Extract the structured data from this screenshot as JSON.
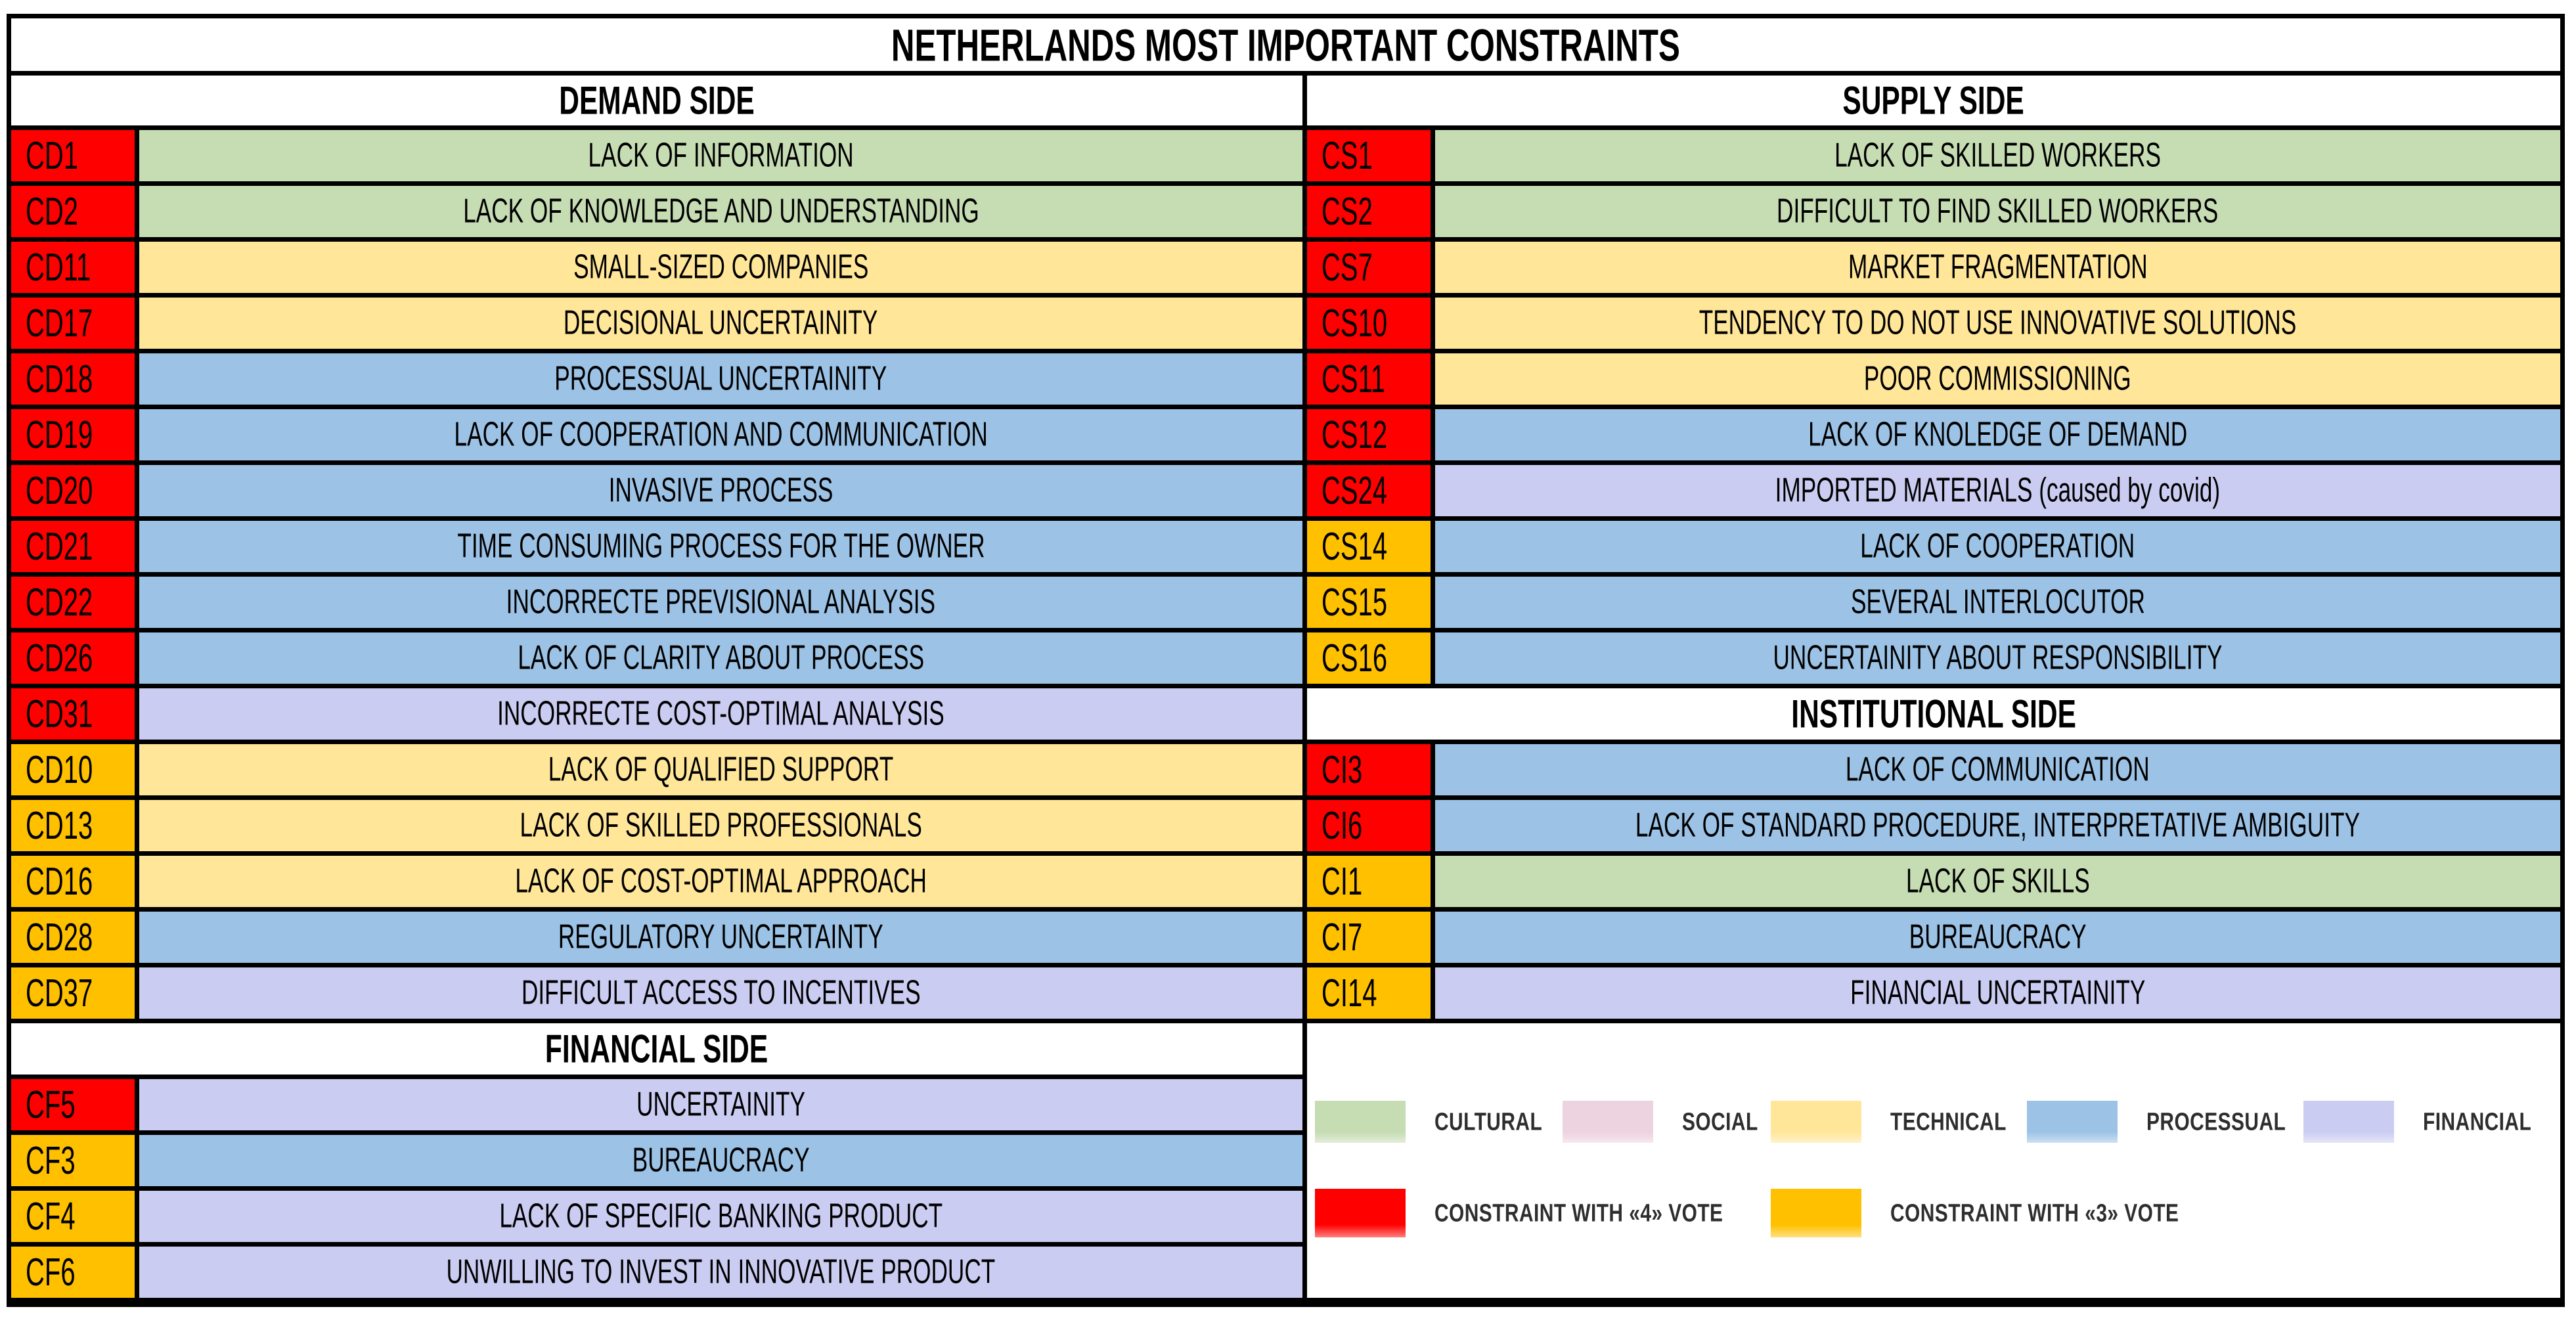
{
  "chart_data": {
    "type": "table",
    "title": "NETHERLANDS MOST IMPORTANT CONSTRAINTS",
    "category_colors": {
      "CULTURAL": "#C6DCB3",
      "SOCIAL": "#EDD2DF",
      "TECHNICAL": "#FFE699",
      "PROCESSUAL": "#9CC2E5",
      "FINANCIAL": "#CBCCF2"
    },
    "vote_colors": {
      "4": "#FF0000",
      "3": "#FFC000"
    },
    "columns": [
      {
        "header": "DEMAND SIDE",
        "sections": [
          {
            "header": null,
            "rows": [
              {
                "id": "CD1",
                "label": "LACK OF INFORMATION",
                "category": "CULTURAL",
                "vote": "4"
              },
              {
                "id": "CD2",
                "label": "LACK OF KNOWLEDGE AND UNDERSTANDING",
                "category": "CULTURAL",
                "vote": "4"
              },
              {
                "id": "CD11",
                "label": "SMALL-SIZED COMPANIES",
                "category": "TECHNICAL",
                "vote": "4"
              },
              {
                "id": "CD17",
                "label": "DECISIONAL UNCERTAINITY",
                "category": "TECHNICAL",
                "vote": "4"
              },
              {
                "id": "CD18",
                "label": "PROCESSUAL UNCERTAINITY",
                "category": "PROCESSUAL",
                "vote": "4"
              },
              {
                "id": "CD19",
                "label": "LACK OF COOPERATION AND COMMUNICATION",
                "category": "PROCESSUAL",
                "vote": "4"
              },
              {
                "id": "CD20",
                "label": "INVASIVE PROCESS",
                "category": "PROCESSUAL",
                "vote": "4"
              },
              {
                "id": "CD21",
                "label": "TIME CONSUMING PROCESS FOR THE OWNER",
                "category": "PROCESSUAL",
                "vote": "4"
              },
              {
                "id": "CD22",
                "label": "INCORRECTE PREVISIONAL ANALYSIS",
                "category": "PROCESSUAL",
                "vote": "4"
              },
              {
                "id": "CD26",
                "label": "LACK OF CLARITY ABOUT PROCESS",
                "category": "PROCESSUAL",
                "vote": "4"
              },
              {
                "id": "CD31",
                "label": "INCORRECTE COST-OPTIMAL ANALYSIS",
                "category": "FINANCIAL",
                "vote": "4"
              },
              {
                "id": "CD10",
                "label": "LACK OF QUALIFIED SUPPORT",
                "category": "TECHNICAL",
                "vote": "3"
              },
              {
                "id": "CD13",
                "label": "LACK OF SKILLED PROFESSIONALS",
                "category": "TECHNICAL",
                "vote": "3"
              },
              {
                "id": "CD16",
                "label": "LACK OF COST-OPTIMAL APPROACH",
                "category": "TECHNICAL",
                "vote": "3"
              },
              {
                "id": "CD28",
                "label": "REGULATORY UNCERTAINTY",
                "category": "PROCESSUAL",
                "vote": "3"
              },
              {
                "id": "CD37",
                "label": "DIFFICULT ACCESS TO INCENTIVES",
                "category": "FINANCIAL",
                "vote": "3"
              }
            ]
          },
          {
            "header": "FINANCIAL SIDE",
            "rows": [
              {
                "id": "CF5",
                "label": "UNCERTAINITY",
                "category": "FINANCIAL",
                "vote": "4"
              },
              {
                "id": "CF3",
                "label": "BUREAUCRACY",
                "category": "PROCESSUAL",
                "vote": "3"
              },
              {
                "id": "CF4",
                "label": "LACK OF SPECIFIC BANKING PRODUCT",
                "category": "FINANCIAL",
                "vote": "3"
              },
              {
                "id": "CF6",
                "label": "UNWILLING TO INVEST IN INNOVATIVE PRODUCT",
                "category": "FINANCIAL",
                "vote": "3"
              }
            ]
          }
        ]
      },
      {
        "header": "SUPPLY SIDE",
        "sections": [
          {
            "header": null,
            "rows": [
              {
                "id": "CS1",
                "label": "LACK OF SKILLED WORKERS",
                "category": "CULTURAL",
                "vote": "4"
              },
              {
                "id": "CS2",
                "label": "DIFFICULT TO FIND SKILLED WORKERS",
                "category": "CULTURAL",
                "vote": "4"
              },
              {
                "id": "CS7",
                "label": "MARKET FRAGMENTATION",
                "category": "TECHNICAL",
                "vote": "4"
              },
              {
                "id": "CS10",
                "label": "TENDENCY TO DO NOT USE INNOVATIVE SOLUTIONS",
                "category": "TECHNICAL",
                "vote": "4"
              },
              {
                "id": "CS11",
                "label": "POOR COMMISSIONING",
                "category": "TECHNICAL",
                "vote": "4"
              },
              {
                "id": "CS12",
                "label": "LACK OF KNOLEDGE OF DEMAND",
                "category": "PROCESSUAL",
                "vote": "4"
              },
              {
                "id": "CS24",
                "label": "IMPORTED MATERIALS (caused by covid)",
                "category": "FINANCIAL",
                "vote": "4"
              },
              {
                "id": "CS14",
                "label": "LACK OF COOPERATION",
                "category": "PROCESSUAL",
                "vote": "3"
              },
              {
                "id": "CS15",
                "label": "SEVERAL INTERLOCUTOR",
                "category": "PROCESSUAL",
                "vote": "3"
              },
              {
                "id": "CS16",
                "label": "UNCERTAINITY ABOUT RESPONSIBILITY",
                "category": "PROCESSUAL",
                "vote": "3"
              }
            ]
          },
          {
            "header": "INSTITUTIONAL SIDE",
            "rows": [
              {
                "id": "CI3",
                "label": "LACK OF COMMUNICATION",
                "category": "PROCESSUAL",
                "vote": "4"
              },
              {
                "id": "CI6",
                "label": "LACK OF STANDARD PROCEDURE, INTERPRETATIVE AMBIGUITY",
                "category": "PROCESSUAL",
                "vote": "4"
              },
              {
                "id": "CI1",
                "label": "LACK OF SKILLS",
                "category": "CULTURAL",
                "vote": "3"
              },
              {
                "id": "CI7",
                "label": "BUREAUCRACY",
                "category": "PROCESSUAL",
                "vote": "3"
              },
              {
                "id": "CI14",
                "label": "FINANCIAL UNCERTAINITY",
                "category": "FINANCIAL",
                "vote": "3"
              }
            ]
          }
        ]
      }
    ],
    "legend": {
      "categories": [
        {
          "key": "cultural",
          "label": "CULTURAL",
          "color": "#C6DCB3"
        },
        {
          "key": "social",
          "label": "SOCIAL",
          "color": "#EDD2DF"
        },
        {
          "key": "technical",
          "label": "TECHNICAL",
          "color": "#FFE699"
        },
        {
          "key": "processual",
          "label": "PROCESSUAL",
          "color": "#9CC2E5"
        },
        {
          "key": "financial",
          "label": "FINANCIAL",
          "color": "#CBCCF2"
        }
      ],
      "votes": [
        {
          "key": "vote-4",
          "label": "CONSTRAINT WITH «4» VOTE",
          "color": "#FF0000"
        },
        {
          "key": "vote-3",
          "label": "CONSTRAINT WITH «3» VOTE",
          "color": "#FFC000"
        }
      ]
    }
  }
}
